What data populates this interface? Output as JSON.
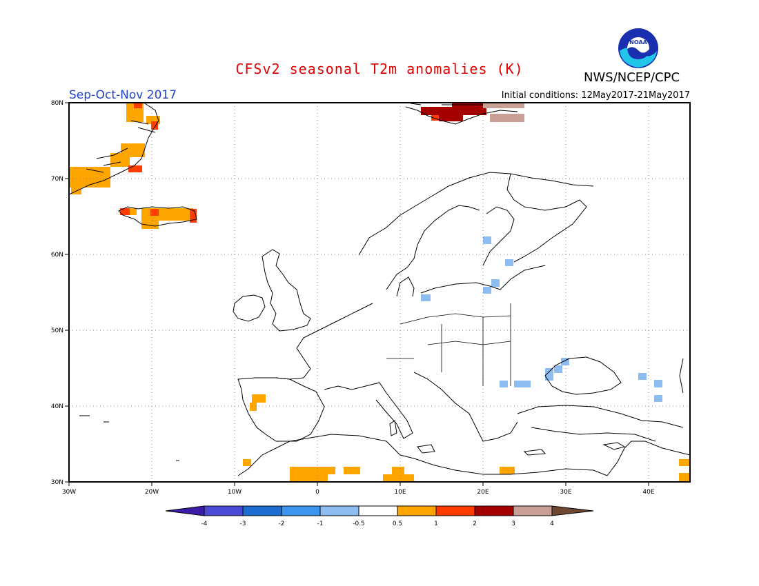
{
  "header": {
    "title": "CFSv2 seasonal T2m anomalies (K)",
    "season": "Sep-Oct-Nov 2017",
    "initial_conditions": "Initial conditions: 12May2017-21May2017",
    "organization": "NWS/NCEP/CPC",
    "logo_text": "NOAA"
  },
  "map": {
    "lat_labels": [
      "80N",
      "70N",
      "60N",
      "50N",
      "40N",
      "30N"
    ],
    "lon_labels": [
      "30W",
      "20W",
      "10W",
      "0",
      "10E",
      "20E",
      "30E",
      "40E"
    ],
    "colors": {
      "cold_light": "#8cbcf0",
      "warm_orange": "#ffa500",
      "warm_red": "#ff3c00",
      "warm_darkred": "#a50000",
      "warm_tan": "#c8a096",
      "coast": "#000000",
      "grid": "#888888"
    }
  },
  "colorbar": {
    "tick_labels": [
      "-4",
      "-3",
      "-2",
      "-1",
      "-0.5",
      "0.5",
      "1",
      "2",
      "3",
      "4"
    ],
    "colors": [
      "#3b1ba8",
      "#4b4bd6",
      "#1e6ed2",
      "#3c96f0",
      "#8cbcf0",
      "#ffffff",
      "#ffa500",
      "#ff3c00",
      "#a50000",
      "#c8a096",
      "#6e4632"
    ]
  }
}
